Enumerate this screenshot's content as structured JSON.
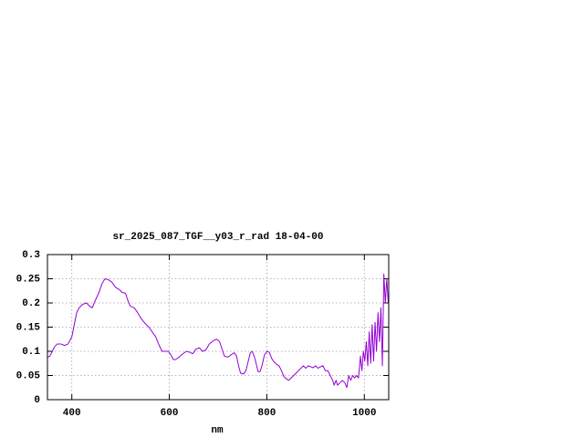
{
  "chart_data": {
    "type": "line",
    "title": "sr_2025_087_TGF__y03_r_rad 18-04-00",
    "x_label": "nm",
    "color": "#9400d3",
    "grid": true,
    "xlim": [
      350,
      1050
    ],
    "ylim": [
      0,
      0.3
    ],
    "xticks": [
      400,
      600,
      800,
      1000
    ],
    "yticks": [
      0,
      0.05,
      0.1,
      0.15,
      0.2,
      0.25,
      0.3
    ],
    "x": [
      350,
      355,
      360,
      365,
      370,
      378,
      385,
      392,
      400,
      405,
      410,
      415,
      422,
      430,
      437,
      442,
      448,
      455,
      462,
      468,
      475,
      482,
      490,
      497,
      503,
      510,
      515,
      520,
      528,
      535,
      542,
      550,
      558,
      565,
      572,
      578,
      585,
      592,
      598,
      603,
      608,
      613,
      620,
      628,
      635,
      642,
      648,
      655,
      662,
      668,
      675,
      682,
      690,
      697,
      703,
      708,
      713,
      720,
      727,
      733,
      738,
      742,
      746,
      752,
      757,
      762,
      766,
      770,
      774,
      778,
      782,
      786,
      790,
      795,
      800,
      805,
      810,
      815,
      820,
      825,
      830,
      835,
      840,
      845,
      850,
      855,
      860,
      865,
      870,
      875,
      880,
      885,
      890,
      895,
      900,
      905,
      910,
      915,
      920,
      925,
      930,
      935,
      938,
      942,
      945,
      950,
      955,
      960,
      964,
      968,
      972,
      976,
      980,
      984,
      988,
      992,
      995,
      998,
      1001,
      1004,
      1007,
      1010,
      1013,
      1016,
      1019,
      1022,
      1025,
      1028,
      1031,
      1034,
      1037,
      1040,
      1043,
      1046,
      1049
    ],
    "values": [
      0.088,
      0.09,
      0.1,
      0.11,
      0.115,
      0.115,
      0.112,
      0.115,
      0.13,
      0.155,
      0.18,
      0.19,
      0.197,
      0.2,
      0.193,
      0.19,
      0.205,
      0.22,
      0.24,
      0.25,
      0.248,
      0.243,
      0.232,
      0.228,
      0.222,
      0.22,
      0.205,
      0.193,
      0.19,
      0.18,
      0.168,
      0.158,
      0.15,
      0.14,
      0.13,
      0.115,
      0.1,
      0.1,
      0.1,
      0.093,
      0.083,
      0.083,
      0.088,
      0.095,
      0.1,
      0.098,
      0.095,
      0.105,
      0.107,
      0.1,
      0.103,
      0.115,
      0.122,
      0.125,
      0.12,
      0.105,
      0.09,
      0.088,
      0.093,
      0.097,
      0.09,
      0.07,
      0.055,
      0.053,
      0.06,
      0.08,
      0.097,
      0.1,
      0.09,
      0.075,
      0.058,
      0.058,
      0.07,
      0.092,
      0.1,
      0.098,
      0.085,
      0.078,
      0.073,
      0.07,
      0.06,
      0.048,
      0.043,
      0.04,
      0.045,
      0.05,
      0.055,
      0.06,
      0.065,
      0.07,
      0.065,
      0.07,
      0.068,
      0.066,
      0.07,
      0.065,
      0.068,
      0.07,
      0.06,
      0.06,
      0.05,
      0.04,
      0.03,
      0.04,
      0.03,
      0.035,
      0.04,
      0.035,
      0.025,
      0.05,
      0.04,
      0.05,
      0.045,
      0.05,
      0.045,
      0.09,
      0.06,
      0.1,
      0.08,
      0.12,
      0.07,
      0.14,
      0.075,
      0.155,
      0.08,
      0.16,
      0.1,
      0.18,
      0.12,
      0.19,
      0.07,
      0.26,
      0.2,
      0.25,
      0.2
    ]
  }
}
